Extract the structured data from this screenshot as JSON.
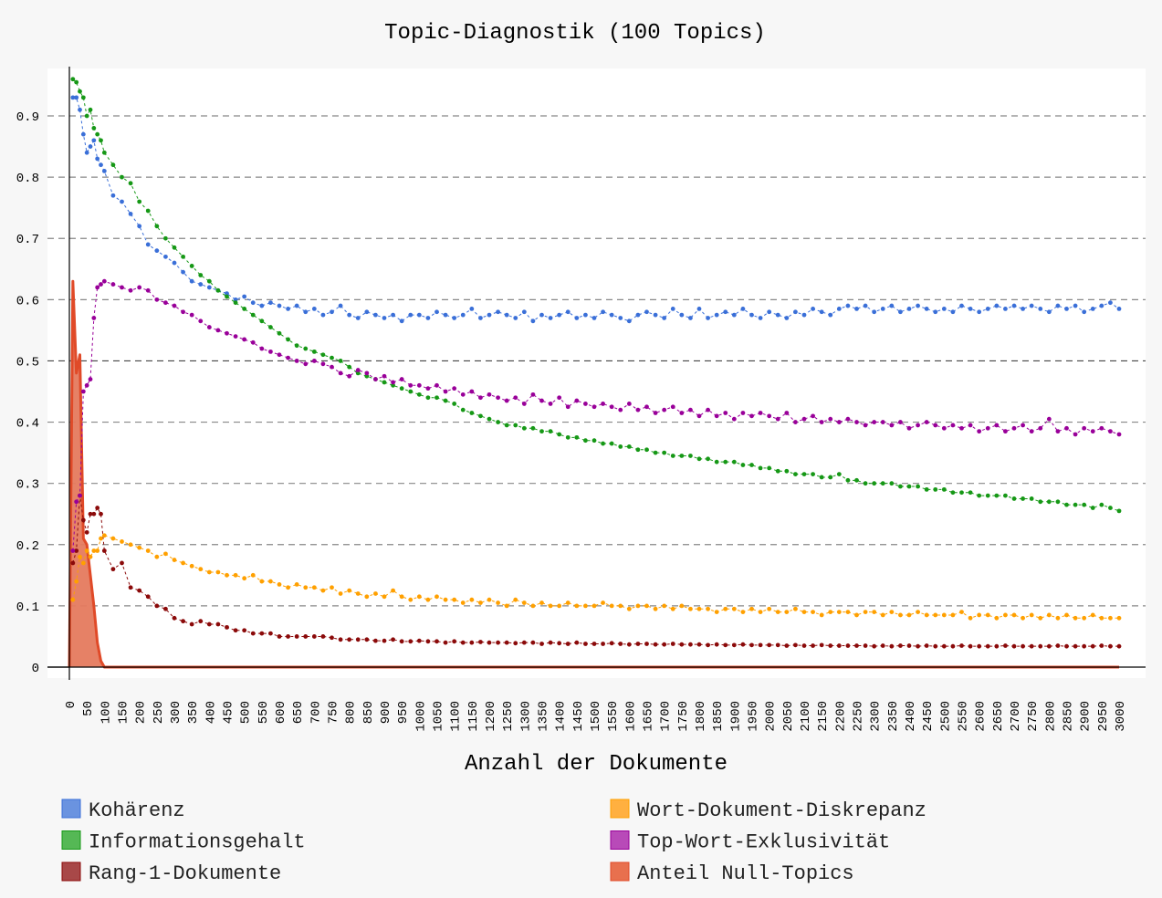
{
  "chart_data": {
    "type": "line",
    "title": "Topic-Diagnostik (100 Topics)",
    "xlabel": "Anzahl der Dokumente",
    "ylabel": "",
    "xlim": [
      0,
      3000
    ],
    "ylim": [
      0,
      0.97
    ],
    "grid": "horizontal dashed",
    "legend_position": "bottom",
    "y_ticks": [
      0,
      0.1,
      0.2,
      0.3,
      0.4,
      0.5,
      0.6,
      0.7,
      0.8,
      0.9
    ],
    "y_tick_labels": [
      "0",
      "0.1",
      "0.2",
      "0.3",
      "0.4",
      "0.5",
      "0.6",
      "0.7",
      "0.8",
      "0.9"
    ],
    "x_ticks": [
      0,
      50,
      100,
      150,
      200,
      250,
      300,
      350,
      400,
      450,
      500,
      550,
      600,
      650,
      700,
      750,
      800,
      850,
      900,
      950,
      1000,
      1050,
      1100,
      1150,
      1200,
      1250,
      1300,
      1350,
      1400,
      1450,
      1500,
      1550,
      1600,
      1650,
      1700,
      1750,
      1800,
      1850,
      1900,
      1950,
      2000,
      2050,
      2100,
      2150,
      2200,
      2250,
      2300,
      2350,
      2400,
      2450,
      2500,
      2550,
      2600,
      2650,
      2700,
      2750,
      2800,
      2850,
      2900,
      2950,
      3000
    ],
    "x": [
      10,
      20,
      30,
      40,
      50,
      60,
      70,
      80,
      90,
      100,
      125,
      150,
      175,
      200,
      225,
      250,
      275,
      300,
      325,
      350,
      375,
      400,
      425,
      450,
      475,
      500,
      525,
      550,
      575,
      600,
      625,
      650,
      675,
      700,
      725,
      750,
      775,
      800,
      825,
      850,
      875,
      900,
      925,
      950,
      975,
      1000,
      1025,
      1050,
      1075,
      1100,
      1125,
      1150,
      1175,
      1200,
      1225,
      1250,
      1275,
      1300,
      1325,
      1350,
      1375,
      1400,
      1425,
      1450,
      1475,
      1500,
      1525,
      1550,
      1575,
      1600,
      1625,
      1650,
      1675,
      1700,
      1725,
      1750,
      1775,
      1800,
      1825,
      1850,
      1875,
      1900,
      1925,
      1950,
      1975,
      2000,
      2025,
      2050,
      2075,
      2100,
      2125,
      2150,
      2175,
      2200,
      2225,
      2250,
      2275,
      2300,
      2325,
      2350,
      2375,
      2400,
      2425,
      2450,
      2475,
      2500,
      2525,
      2550,
      2575,
      2600,
      2625,
      2650,
      2675,
      2700,
      2725,
      2750,
      2775,
      2800,
      2825,
      2850,
      2875,
      2900,
      2925,
      2950,
      2975,
      3000
    ],
    "series": [
      {
        "name": "Kohärenz",
        "color": "#3a6fd8",
        "legend_color": "#6a93e0",
        "values": [
          0.93,
          0.93,
          0.91,
          0.87,
          0.84,
          0.85,
          0.86,
          0.83,
          0.82,
          0.81,
          0.77,
          0.76,
          0.74,
          0.72,
          0.69,
          0.68,
          0.67,
          0.66,
          0.645,
          0.63,
          0.625,
          0.62,
          0.615,
          0.61,
          0.6,
          0.605,
          0.595,
          0.59,
          0.595,
          0.59,
          0.585,
          0.59,
          0.58,
          0.585,
          0.575,
          0.58,
          0.59,
          0.575,
          0.57,
          0.58,
          0.575,
          0.57,
          0.575,
          0.565,
          0.575,
          0.575,
          0.57,
          0.58,
          0.575,
          0.57,
          0.575,
          0.585,
          0.57,
          0.575,
          0.58,
          0.575,
          0.57,
          0.58,
          0.565,
          0.575,
          0.57,
          0.575,
          0.58,
          0.57,
          0.575,
          0.57,
          0.58,
          0.575,
          0.57,
          0.565,
          0.575,
          0.58,
          0.575,
          0.57,
          0.585,
          0.575,
          0.57,
          0.585,
          0.57,
          0.575,
          0.58,
          0.575,
          0.585,
          0.575,
          0.57,
          0.58,
          0.575,
          0.57,
          0.58,
          0.575,
          0.585,
          0.58,
          0.575,
          0.585,
          0.59,
          0.585,
          0.59,
          0.58,
          0.585,
          0.59,
          0.58,
          0.585,
          0.59,
          0.585,
          0.58,
          0.585,
          0.58,
          0.59,
          0.585,
          0.58,
          0.585,
          0.59,
          0.585,
          0.59,
          0.585,
          0.59,
          0.585,
          0.58,
          0.59,
          0.585,
          0.59,
          0.58,
          0.585,
          0.59,
          0.595,
          0.585
        ]
      },
      {
        "name": "Informationsgehalt",
        "color": "#169816",
        "legend_color": "#55b855",
        "values": [
          0.96,
          0.955,
          0.94,
          0.93,
          0.9,
          0.91,
          0.88,
          0.87,
          0.86,
          0.84,
          0.82,
          0.8,
          0.79,
          0.76,
          0.745,
          0.72,
          0.7,
          0.685,
          0.67,
          0.655,
          0.64,
          0.63,
          0.615,
          0.605,
          0.595,
          0.585,
          0.575,
          0.565,
          0.555,
          0.545,
          0.535,
          0.525,
          0.52,
          0.515,
          0.51,
          0.505,
          0.5,
          0.49,
          0.48,
          0.475,
          0.47,
          0.465,
          0.46,
          0.455,
          0.45,
          0.445,
          0.44,
          0.44,
          0.435,
          0.43,
          0.42,
          0.415,
          0.41,
          0.405,
          0.4,
          0.395,
          0.395,
          0.39,
          0.39,
          0.385,
          0.385,
          0.38,
          0.375,
          0.375,
          0.37,
          0.37,
          0.365,
          0.365,
          0.36,
          0.36,
          0.355,
          0.355,
          0.35,
          0.35,
          0.345,
          0.345,
          0.345,
          0.34,
          0.34,
          0.335,
          0.335,
          0.335,
          0.33,
          0.33,
          0.325,
          0.325,
          0.32,
          0.32,
          0.315,
          0.315,
          0.315,
          0.31,
          0.31,
          0.315,
          0.305,
          0.305,
          0.3,
          0.3,
          0.3,
          0.3,
          0.295,
          0.295,
          0.295,
          0.29,
          0.29,
          0.29,
          0.285,
          0.285,
          0.285,
          0.28,
          0.28,
          0.28,
          0.28,
          0.275,
          0.275,
          0.275,
          0.27,
          0.27,
          0.27,
          0.265,
          0.265,
          0.265,
          0.26,
          0.265,
          0.26,
          0.255
        ]
      },
      {
        "name": "Rang-1-Dokumente",
        "color": "#8b0a0a",
        "legend_color": "#a84848",
        "values": [
          0.17,
          0.19,
          0.28,
          0.24,
          0.22,
          0.25,
          0.25,
          0.26,
          0.25,
          0.19,
          0.16,
          0.17,
          0.13,
          0.125,
          0.115,
          0.1,
          0.095,
          0.08,
          0.075,
          0.07,
          0.075,
          0.07,
          0.07,
          0.065,
          0.06,
          0.06,
          0.055,
          0.055,
          0.055,
          0.05,
          0.05,
          0.05,
          0.05,
          0.05,
          0.05,
          0.048,
          0.045,
          0.045,
          0.045,
          0.045,
          0.043,
          0.043,
          0.045,
          0.042,
          0.042,
          0.043,
          0.042,
          0.042,
          0.04,
          0.042,
          0.04,
          0.04,
          0.041,
          0.04,
          0.04,
          0.04,
          0.039,
          0.04,
          0.04,
          0.038,
          0.04,
          0.039,
          0.038,
          0.04,
          0.038,
          0.038,
          0.038,
          0.039,
          0.038,
          0.037,
          0.038,
          0.038,
          0.037,
          0.037,
          0.038,
          0.037,
          0.037,
          0.037,
          0.036,
          0.037,
          0.036,
          0.036,
          0.037,
          0.036,
          0.036,
          0.036,
          0.036,
          0.035,
          0.036,
          0.035,
          0.035,
          0.036,
          0.035,
          0.035,
          0.035,
          0.035,
          0.035,
          0.034,
          0.035,
          0.034,
          0.035,
          0.035,
          0.034,
          0.035,
          0.034,
          0.034,
          0.034,
          0.035,
          0.034,
          0.034,
          0.034,
          0.034,
          0.035,
          0.034,
          0.034,
          0.034,
          0.034,
          0.034,
          0.035,
          0.034,
          0.034,
          0.034,
          0.034,
          0.035,
          0.034,
          0.034
        ]
      },
      {
        "name": "Wort-Dokument-Diskrepanz",
        "color": "#ffa000",
        "legend_color": "#ffb040",
        "values": [
          0.11,
          0.14,
          0.18,
          0.17,
          0.19,
          0.18,
          0.19,
          0.19,
          0.21,
          0.215,
          0.21,
          0.205,
          0.2,
          0.195,
          0.19,
          0.18,
          0.185,
          0.175,
          0.17,
          0.165,
          0.16,
          0.155,
          0.155,
          0.15,
          0.15,
          0.145,
          0.15,
          0.14,
          0.14,
          0.135,
          0.13,
          0.135,
          0.13,
          0.13,
          0.125,
          0.13,
          0.12,
          0.125,
          0.12,
          0.115,
          0.12,
          0.115,
          0.125,
          0.115,
          0.11,
          0.115,
          0.11,
          0.115,
          0.11,
          0.11,
          0.105,
          0.11,
          0.105,
          0.11,
          0.105,
          0.1,
          0.11,
          0.105,
          0.1,
          0.105,
          0.1,
          0.1,
          0.105,
          0.1,
          0.1,
          0.1,
          0.105,
          0.1,
          0.1,
          0.095,
          0.1,
          0.1,
          0.095,
          0.1,
          0.095,
          0.1,
          0.095,
          0.095,
          0.095,
          0.09,
          0.095,
          0.095,
          0.09,
          0.095,
          0.09,
          0.095,
          0.09,
          0.09,
          0.095,
          0.09,
          0.09,
          0.085,
          0.09,
          0.09,
          0.09,
          0.085,
          0.09,
          0.09,
          0.085,
          0.09,
          0.085,
          0.085,
          0.09,
          0.085,
          0.085,
          0.085,
          0.085,
          0.09,
          0.08,
          0.085,
          0.085,
          0.08,
          0.085,
          0.085,
          0.08,
          0.085,
          0.08,
          0.085,
          0.08,
          0.085,
          0.08,
          0.08,
          0.085,
          0.08,
          0.08,
          0.08
        ]
      },
      {
        "name": "Top-Wort-Exklusivität",
        "color": "#990099",
        "legend_color": "#b84ab8",
        "values": [
          0.19,
          0.27,
          0.28,
          0.45,
          0.46,
          0.47,
          0.57,
          0.62,
          0.625,
          0.63,
          0.625,
          0.62,
          0.615,
          0.62,
          0.615,
          0.6,
          0.595,
          0.59,
          0.58,
          0.575,
          0.565,
          0.555,
          0.55,
          0.545,
          0.54,
          0.535,
          0.53,
          0.52,
          0.515,
          0.51,
          0.505,
          0.5,
          0.495,
          0.5,
          0.495,
          0.49,
          0.48,
          0.475,
          0.485,
          0.48,
          0.47,
          0.475,
          0.465,
          0.47,
          0.46,
          0.46,
          0.455,
          0.46,
          0.45,
          0.455,
          0.445,
          0.45,
          0.44,
          0.445,
          0.44,
          0.435,
          0.44,
          0.43,
          0.445,
          0.435,
          0.43,
          0.44,
          0.425,
          0.435,
          0.43,
          0.425,
          0.43,
          0.425,
          0.42,
          0.43,
          0.42,
          0.425,
          0.415,
          0.42,
          0.425,
          0.415,
          0.42,
          0.41,
          0.42,
          0.41,
          0.415,
          0.405,
          0.415,
          0.41,
          0.415,
          0.41,
          0.405,
          0.415,
          0.4,
          0.405,
          0.41,
          0.4,
          0.405,
          0.4,
          0.405,
          0.4,
          0.395,
          0.4,
          0.4,
          0.395,
          0.4,
          0.39,
          0.395,
          0.4,
          0.395,
          0.39,
          0.395,
          0.39,
          0.395,
          0.385,
          0.39,
          0.395,
          0.385,
          0.39,
          0.395,
          0.385,
          0.39,
          0.405,
          0.385,
          0.39,
          0.38,
          0.39,
          0.385,
          0.39,
          0.385,
          0.38
        ]
      }
    ],
    "area_series": {
      "name": "Anteil Null-Topics",
      "color": "#e04a28",
      "fill": "#e57a5e",
      "legend_color": "#e8704e",
      "x": [
        0,
        10,
        20,
        30,
        40,
        50,
        60,
        70,
        80,
        90,
        100,
        3000
      ],
      "values": [
        0,
        0.63,
        0.48,
        0.51,
        0.21,
        0.2,
        0.15,
        0.1,
        0.04,
        0.01,
        0,
        0
      ]
    }
  }
}
